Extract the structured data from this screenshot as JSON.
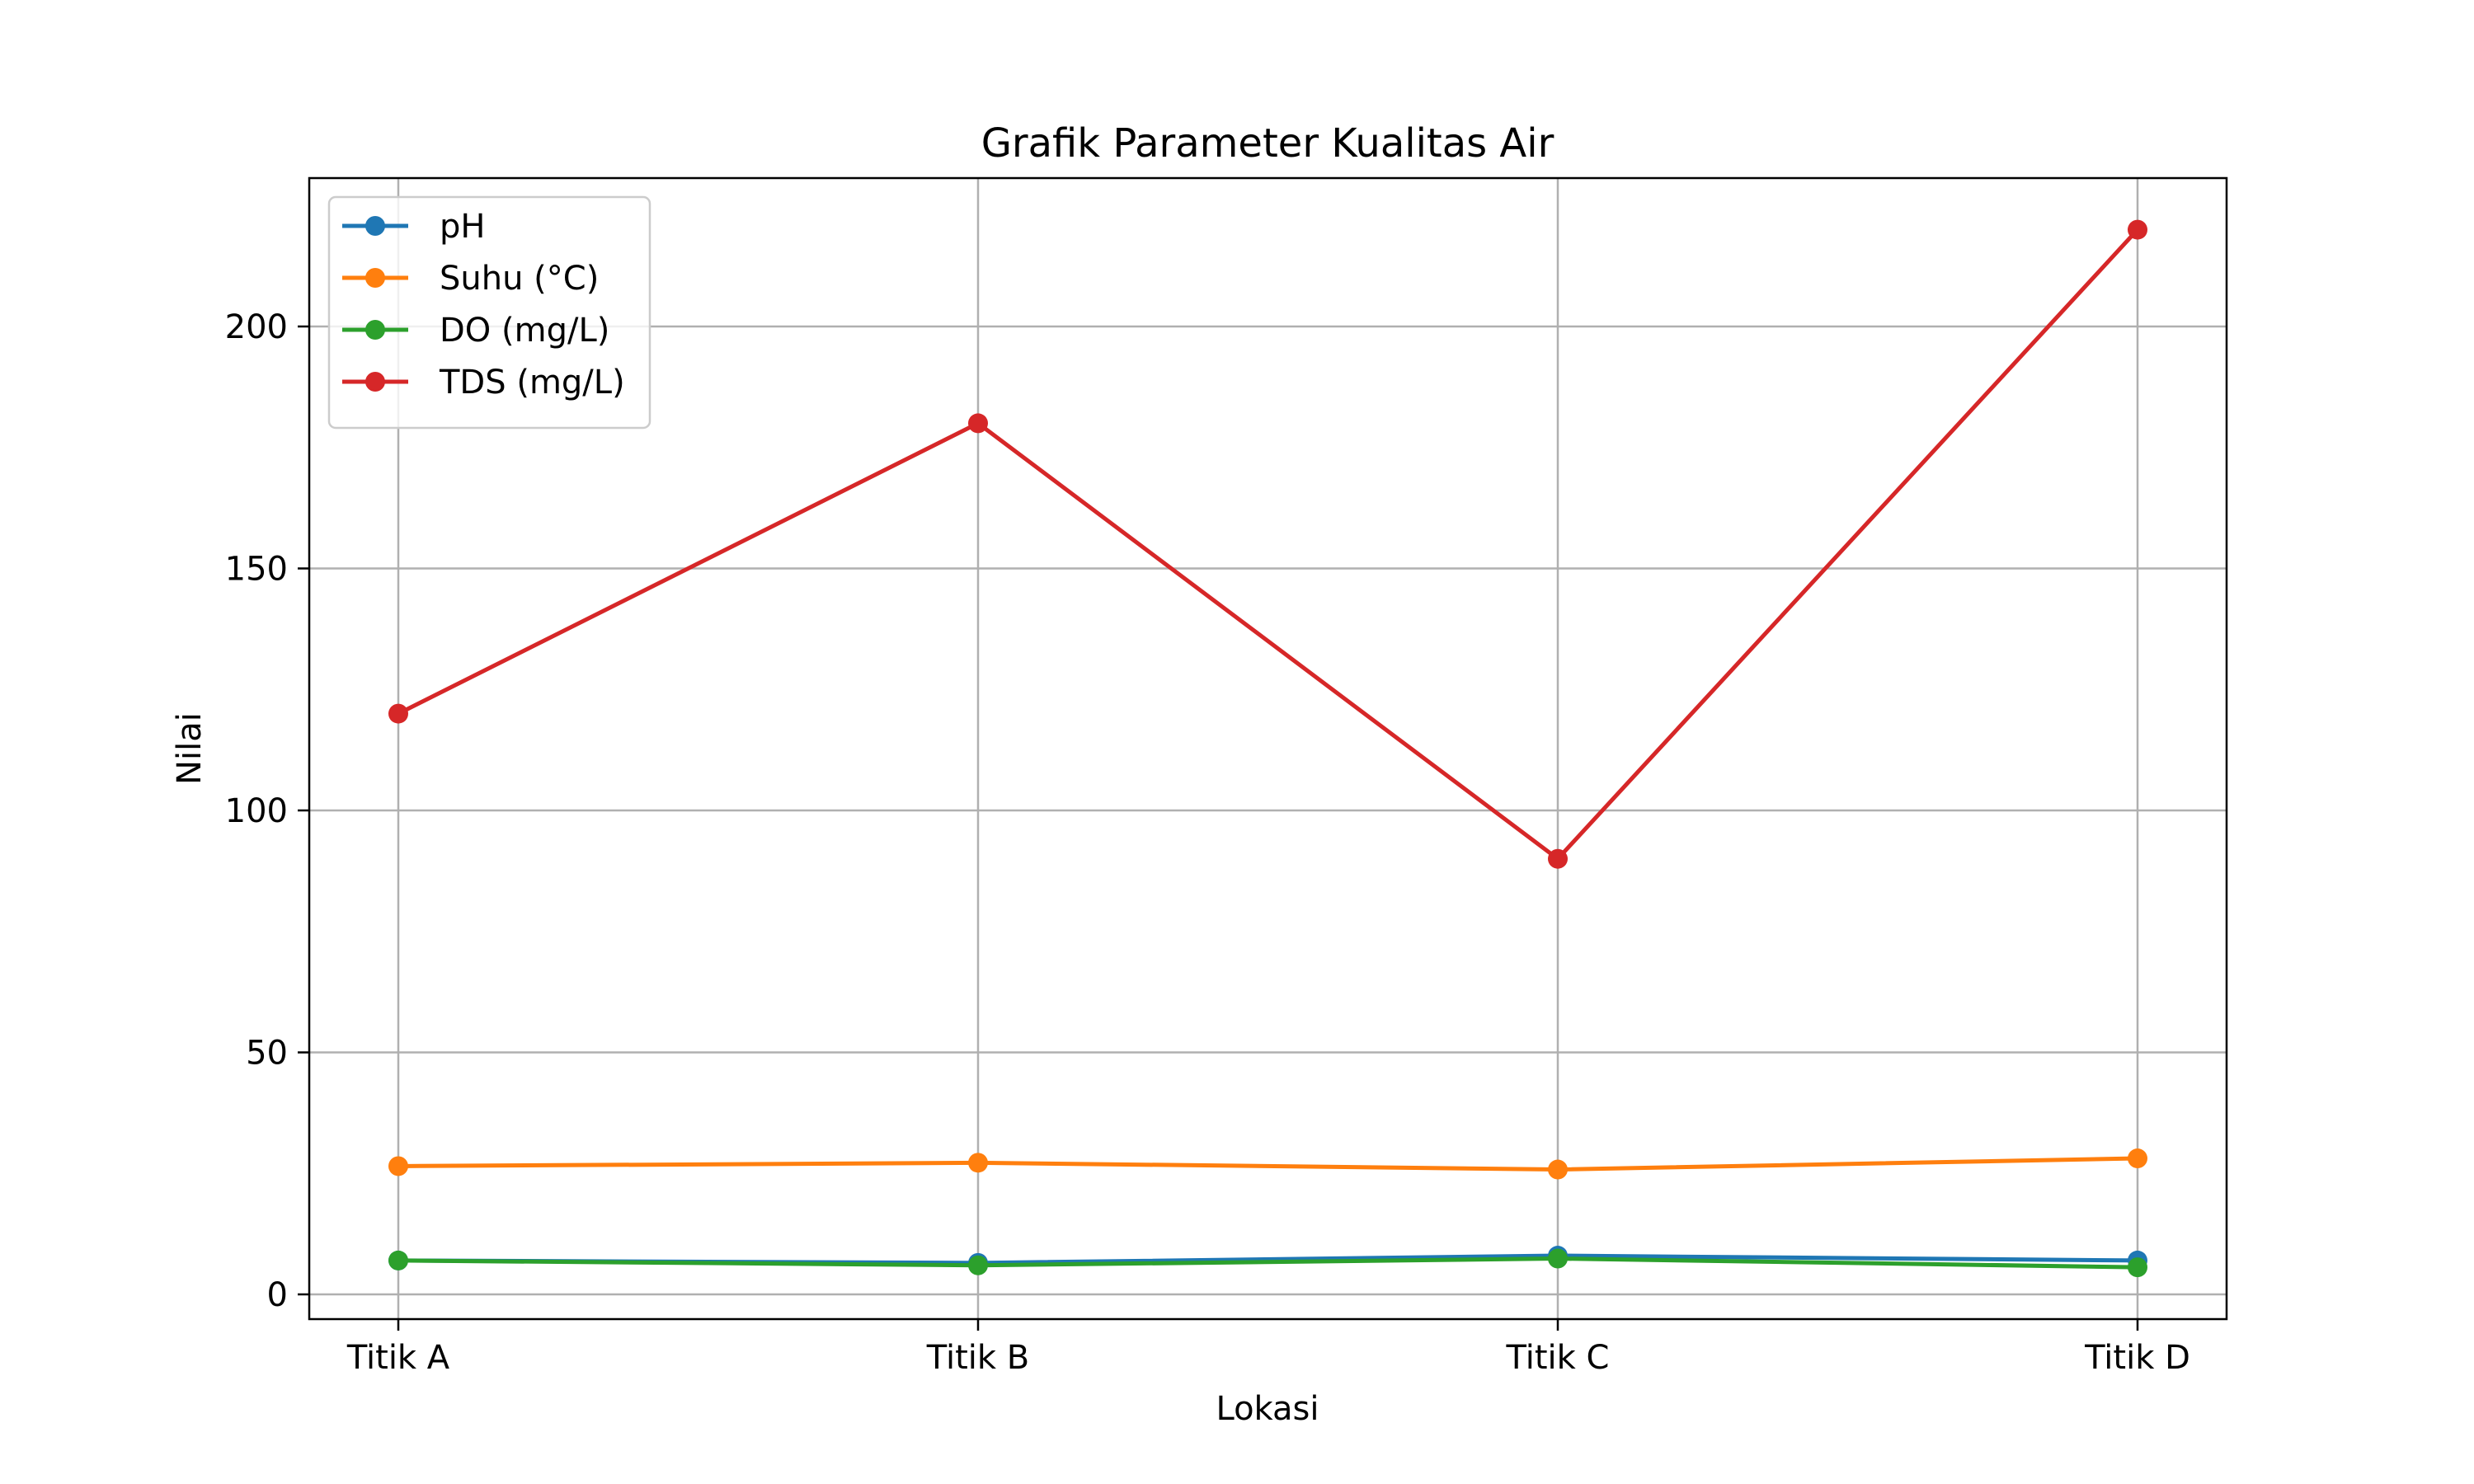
{
  "chart_data": {
    "type": "line",
    "title": "Grafik Parameter Kualitas Air",
    "xlabel": "Lokasi",
    "ylabel": "Nilai",
    "categories": [
      "Titik A",
      "Titik B",
      "Titik C",
      "Titik D"
    ],
    "ylim": [
      -5,
      230
    ],
    "yticks": [
      0,
      50,
      100,
      150,
      200
    ],
    "grid": true,
    "legend_position": "upper-left",
    "series": [
      {
        "name": "pH",
        "color": "#1f77b4",
        "values": [
          7.0,
          6.5,
          8.0,
          7.0
        ]
      },
      {
        "name": "Suhu (°C)",
        "color": "#ff7f0e",
        "values": [
          26.5,
          27.2,
          25.8,
          28.1
        ]
      },
      {
        "name": "DO (mg/L)",
        "color": "#2ca02c",
        "values": [
          7.0,
          6.0,
          7.4,
          5.6
        ]
      },
      {
        "name": "TDS (mg/L)",
        "color": "#d62728",
        "values": [
          120,
          180,
          90,
          220
        ]
      }
    ]
  }
}
